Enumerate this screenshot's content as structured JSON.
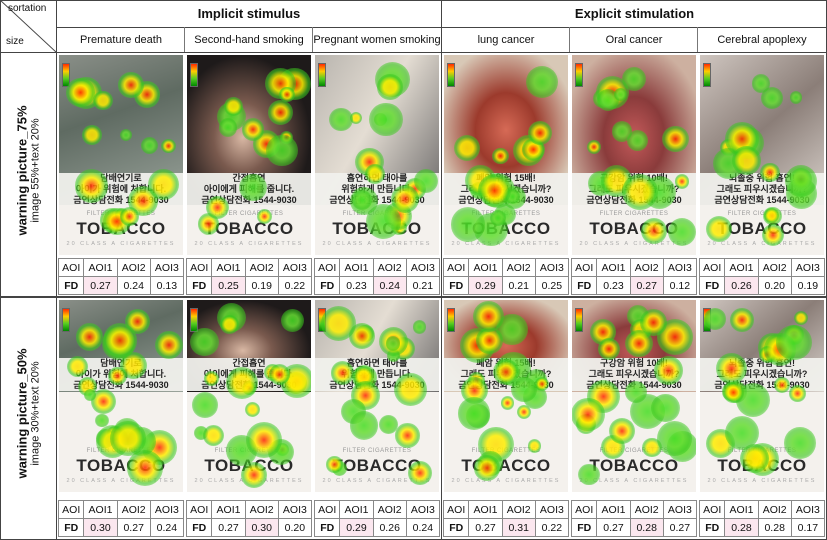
{
  "header": {
    "sortation_label": "sortation",
    "size_label": "size",
    "groups": [
      "Implicit stimulus",
      "Explicit stimulation"
    ],
    "columns": [
      "Premature death",
      "Second-hand smoking",
      "Pregnant women smoking",
      "lung cancer",
      "Oral cancer",
      "Cerebral apoplexy"
    ]
  },
  "rows": [
    {
      "label": "warning picture_75%",
      "sub": "image 55%+text 20%"
    },
    {
      "label": "warning picture_50%",
      "sub": "image 30%+text 20%"
    }
  ],
  "pack": {
    "filter_text": "FILTER CIGARETTES",
    "brand": "TOBACCO",
    "class_text": "20 CLASS A CIGARETTES"
  },
  "aoi_headers": [
    "AOI",
    "AOI1",
    "AOI2",
    "AOI3"
  ],
  "fd_label": "FD",
  "fd_values": [
    [
      [
        "0.27",
        "0.24",
        "0.13"
      ],
      [
        "0.25",
        "0.19",
        "0.22"
      ],
      [
        "0.23",
        "0.24",
        "0.21"
      ],
      [
        "0.29",
        "0.21",
        "0.25"
      ],
      [
        "0.23",
        "0.27",
        "0.12"
      ],
      [
        "0.26",
        "0.20",
        "0.19"
      ]
    ],
    [
      [
        "0.30",
        "0.27",
        "0.24"
      ],
      [
        "0.27",
        "0.30",
        "0.20"
      ],
      [
        "0.29",
        "0.26",
        "0.24"
      ],
      [
        "0.27",
        "0.31",
        "0.22"
      ],
      [
        "0.27",
        "0.28",
        "0.27"
      ],
      [
        "0.28",
        "0.28",
        "0.17"
      ]
    ]
  ],
  "fd_highlight": [
    [
      0,
      0,
      1,
      0,
      1,
      0
    ],
    [
      0,
      1,
      0,
      1,
      1,
      0
    ]
  ],
  "colors": {
    "heat_red": "#ff2200",
    "heat_yellow": "#ffdd00",
    "heat_green": "#33cc22",
    "highlight": "#fbe7ef"
  }
}
